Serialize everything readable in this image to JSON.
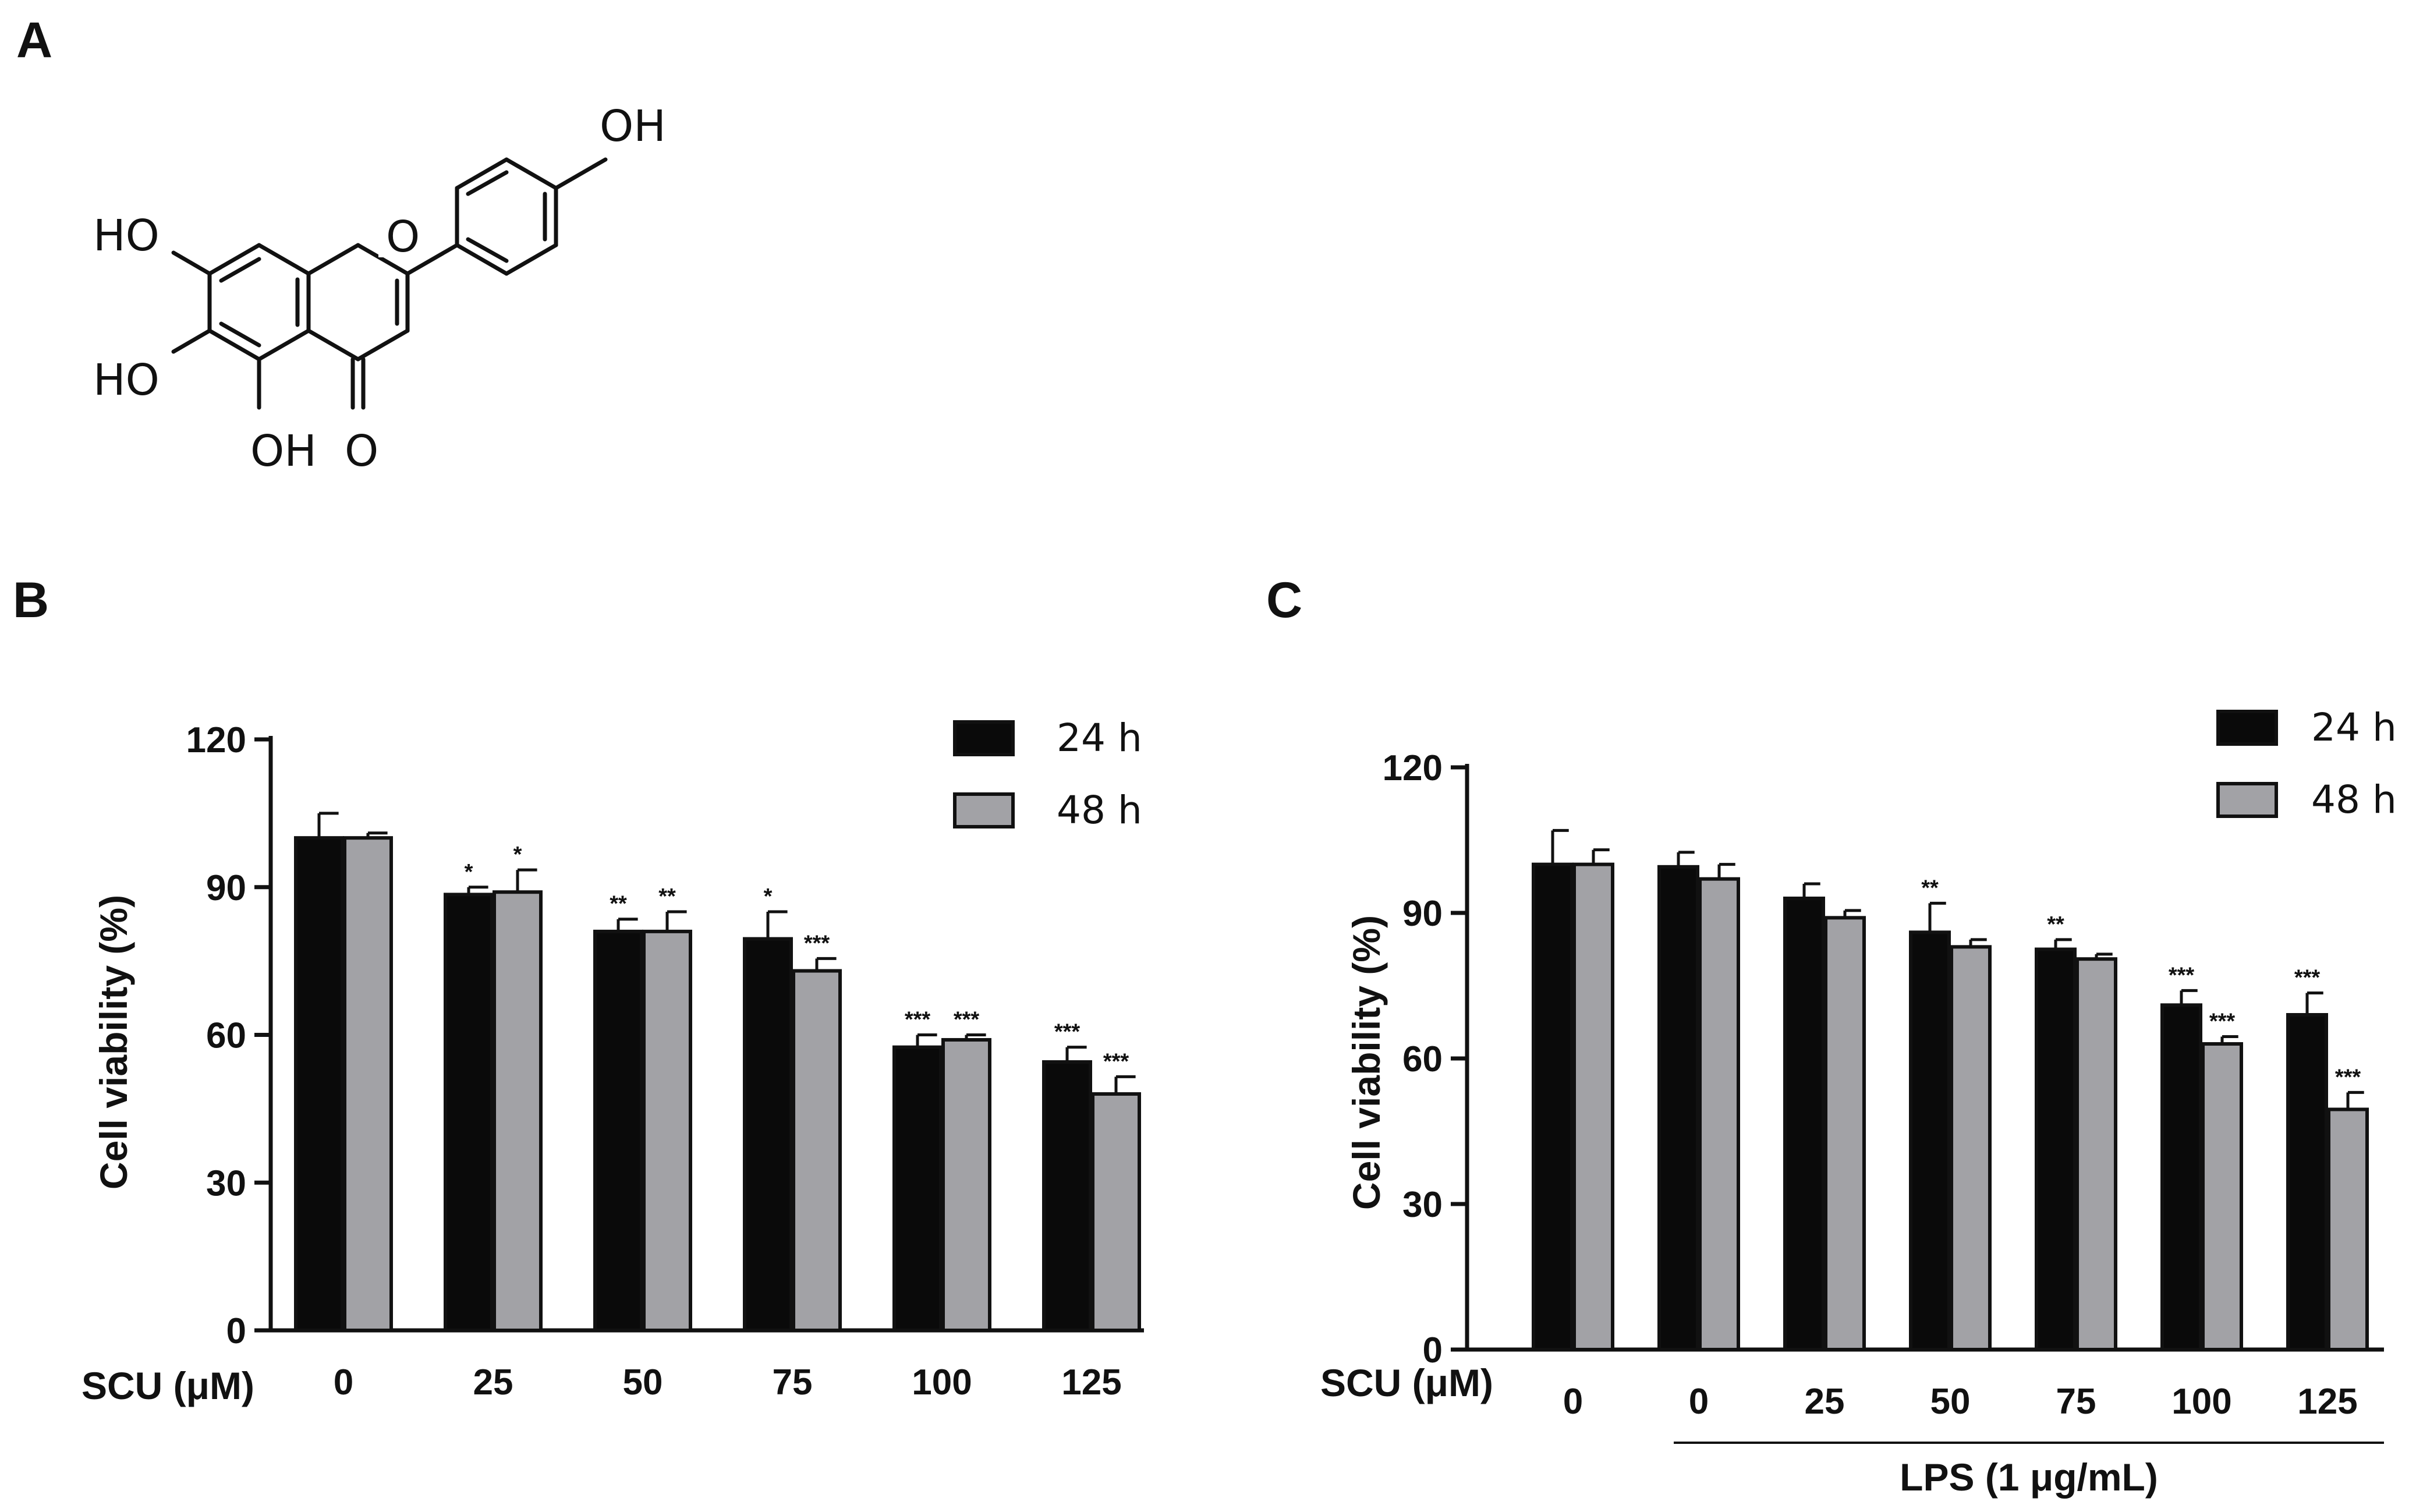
{
  "panels": {
    "a": "A",
    "b": "B",
    "c": "C"
  },
  "structure": {
    "labels": [
      "OH",
      "HO",
      "O",
      "HO",
      "OH",
      "O"
    ]
  },
  "colors": {
    "series_24h": "#0a0a0a",
    "series_48h": "#a2a2a6",
    "axis": "#111111"
  },
  "chart_data": [
    {
      "type": "bar",
      "panel": "B",
      "ylabel": "Cell viability (%)",
      "xlabel": "SCU (μM)",
      "ylim": [
        0,
        120
      ],
      "yticks": [
        0,
        30,
        60,
        90,
        120
      ],
      "categories": [
        "0",
        "25",
        "50",
        "75",
        "100",
        "125"
      ],
      "legend_position": "top-right",
      "series": [
        {
          "name": "24 h",
          "values": [
            100,
            88.5,
            81,
            79.5,
            57.5,
            54.5
          ],
          "errors": [
            5,
            1.5,
            2.5,
            5.5,
            2.5,
            3
          ],
          "sig": [
            "",
            "*",
            "**",
            "*",
            "***",
            "***"
          ]
        },
        {
          "name": "48 h",
          "values": [
            100,
            89,
            81,
            73,
            59,
            48
          ],
          "errors": [
            1,
            4.5,
            4,
            2.5,
            1,
            3.5
          ],
          "sig": [
            "",
            "*",
            "**",
            "***",
            "***",
            "***"
          ]
        }
      ]
    },
    {
      "type": "bar",
      "panel": "C",
      "ylabel": "Cell viability (%)",
      "xlabel": "SCU (μM)",
      "ylim": [
        0,
        120
      ],
      "yticks": [
        0,
        30,
        60,
        90,
        120
      ],
      "categories": [
        "0",
        "0",
        "25",
        "50",
        "75",
        "100",
        "125"
      ],
      "group_label": "LPS (1 μg/mL)",
      "legend_position": "top-right",
      "series": [
        {
          "name": "24 h",
          "values": [
            100,
            99.5,
            93,
            86,
            82.5,
            71,
            69
          ],
          "errors": [
            7,
            3,
            3,
            6,
            2,
            3,
            4.5
          ],
          "sig": [
            "",
            "",
            "",
            "**",
            "**",
            "***",
            "***"
          ]
        },
        {
          "name": "48 h",
          "values": [
            100,
            97,
            89,
            83,
            80.5,
            63,
            49.5
          ],
          "errors": [
            3,
            3,
            1.5,
            1.5,
            1,
            1.5,
            3.5
          ],
          "sig": [
            "",
            "",
            "",
            "",
            "",
            "***",
            "***"
          ]
        }
      ]
    }
  ]
}
